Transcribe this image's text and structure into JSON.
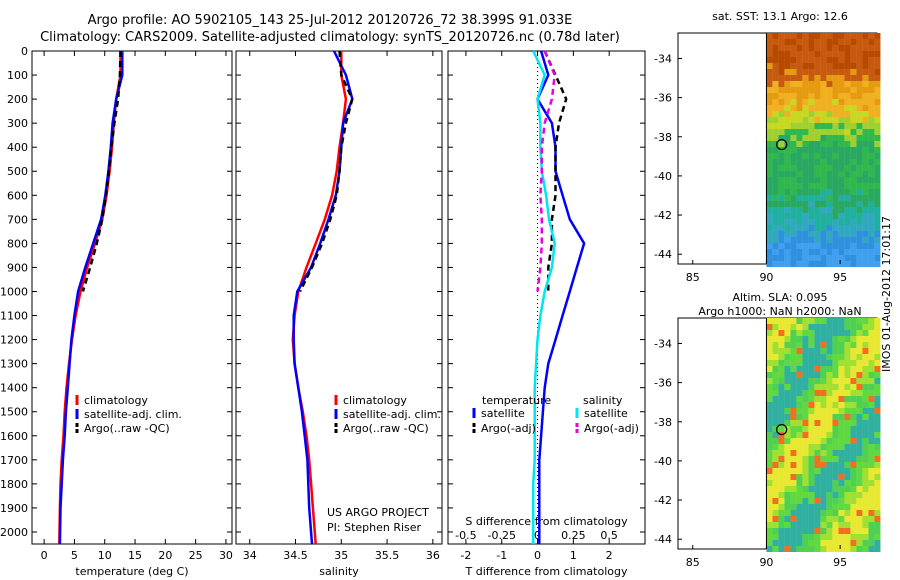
{
  "titles": {
    "line1": "Argo profile: AO 5902105_143 25-Jul-2012 20120726_72 38.399S 91.033E",
    "line2": "Climatology: CARS2009. Satellite-adjusted climatology: synTS_20120726.nc (0.78d later)",
    "map_top": "sat. SST: 13.1 Argo: 12.6",
    "map_bottom_1": "Altim. SLA: 0.095",
    "map_bottom_2": "Argo h1000: NaN h2000: NaN",
    "side_stamp": "IMOS 01-Aug-2012 17:01:17"
  },
  "colors": {
    "climatology": "#ff0000",
    "satellite": "#0000ff",
    "argo": "#000000",
    "salinity_sat": "#00e5ee",
    "salinity_argo": "#e600e6"
  },
  "chart_data": [
    {
      "id": "temperature",
      "type": "line",
      "xlabel": "temperature (deg C)",
      "ylabel": "",
      "xlim": [
        -2,
        31
      ],
      "ylim": [
        2050,
        0
      ],
      "xticks": [
        0,
        5,
        10,
        15,
        20,
        25,
        30
      ],
      "yticks": [
        0,
        100,
        200,
        300,
        400,
        500,
        600,
        700,
        800,
        900,
        1000,
        1100,
        1200,
        1300,
        1400,
        1500,
        1600,
        1700,
        1800,
        1900,
        2000
      ],
      "legend": [
        "climatology",
        "satellite-adj. clim.",
        "Argo(..raw -QC)"
      ],
      "series": [
        {
          "name": "climatology",
          "x": [
            12.6,
            12.6,
            11.9,
            11.5,
            11.2,
            10.8,
            10.3,
            9.6,
            8.4,
            7.1,
            6.0,
            5.2,
            4.6,
            4.1,
            3.7,
            3.4,
            3.2,
            2.9,
            2.7,
            2.6,
            2.5
          ],
          "y": [
            0,
            100,
            200,
            300,
            400,
            500,
            600,
            700,
            800,
            900,
            1000,
            1100,
            1200,
            1300,
            1400,
            1500,
            1600,
            1700,
            1800,
            1900,
            2050
          ]
        },
        {
          "name": "satellite",
          "x": [
            12.9,
            12.9,
            11.9,
            11.3,
            11.0,
            10.6,
            10.1,
            9.4,
            8.1,
            6.8,
            5.6,
            5.0,
            4.5,
            4.2,
            3.9,
            3.6,
            3.4,
            3.1,
            2.9,
            2.7,
            2.6
          ],
          "y": [
            0,
            100,
            200,
            300,
            400,
            500,
            600,
            700,
            800,
            900,
            1000,
            1100,
            1200,
            1300,
            1400,
            1500,
            1600,
            1700,
            1800,
            1900,
            2050
          ]
        },
        {
          "name": "argo",
          "x": [
            12.6,
            12.5,
            12.2,
            11.6,
            11.1,
            10.7,
            10.2,
            9.6,
            8.7,
            7.6,
            6.4
          ],
          "y": [
            0,
            100,
            200,
            300,
            400,
            500,
            600,
            700,
            800,
            900,
            1000
          ]
        }
      ]
    },
    {
      "id": "salinity",
      "type": "line",
      "xlabel": "salinity",
      "ylabel": "",
      "xlim": [
        33.85,
        36.1
      ],
      "ylim": [
        2050,
        0
      ],
      "xticks": [
        34,
        34.5,
        35,
        35.5,
        36
      ],
      "legend": [
        "climatology",
        "satellite-adj. clim.",
        "Argo(..raw -QC)"
      ],
      "series": [
        {
          "name": "climatology",
          "x": [
            35.0,
            35.0,
            35.05,
            35.02,
            34.98,
            34.95,
            34.9,
            34.82,
            34.72,
            34.62,
            34.53,
            34.49,
            34.47,
            34.49,
            34.53,
            34.58,
            34.62,
            34.65,
            34.67,
            34.69,
            34.72
          ],
          "y": [
            0,
            100,
            200,
            300,
            400,
            500,
            600,
            700,
            800,
            900,
            1000,
            1100,
            1200,
            1300,
            1400,
            1500,
            1600,
            1700,
            1800,
            1900,
            2050
          ]
        },
        {
          "name": "satellite",
          "x": [
            34.92,
            35.05,
            35.12,
            35.02,
            35.0,
            34.98,
            34.94,
            34.86,
            34.77,
            34.67,
            34.52,
            34.48,
            34.48,
            34.49,
            34.53,
            34.57,
            34.6,
            34.63,
            34.64,
            34.65,
            34.68
          ],
          "y": [
            0,
            100,
            200,
            300,
            400,
            500,
            600,
            700,
            800,
            900,
            1000,
            1100,
            1200,
            1300,
            1400,
            1500,
            1600,
            1700,
            1800,
            1900,
            2050
          ]
        },
        {
          "name": "argo",
          "x": [
            34.98,
            35.0,
            35.12,
            35.05,
            35.0,
            34.98,
            34.95,
            34.88,
            34.79,
            34.68,
            34.55
          ],
          "y": [
            0,
            100,
            200,
            300,
            400,
            500,
            600,
            700,
            800,
            900,
            1000
          ]
        }
      ],
      "annotations": [
        "US ARGO PROJECT",
        "PI: Stephen Riser"
      ]
    },
    {
      "id": "difference",
      "type": "line",
      "xlabel": "T difference from climatology",
      "xlabel_top": "S difference from climatology",
      "xlim": [
        -2.5,
        3.0
      ],
      "ylim": [
        2050,
        0
      ],
      "xticks": [
        -2,
        -1,
        0,
        1,
        2
      ],
      "xticks_salinity": [
        -0.5,
        -0.25,
        0,
        0.25,
        0.5
      ],
      "xticks_salinity_labels": [
        "-0.5",
        "-0.25",
        "0",
        "0.25",
        "0.5"
      ],
      "legend_headers": [
        "temperature",
        "salinity"
      ],
      "legend": [
        "satellite",
        "Argo(-adj)",
        "satellite",
        "Argo(-adj)"
      ],
      "series": [
        {
          "name": "temperature satellite",
          "x": [
            0.1,
            0.3,
            0.0,
            0.4,
            0.5,
            0.5,
            0.7,
            0.9,
            1.3,
            1.1,
            0.9,
            0.7,
            0.5,
            0.3,
            0.2,
            0.15,
            0.1,
            0.05,
            0.05,
            0.05,
            0.05
          ],
          "y": [
            0,
            100,
            200,
            300,
            400,
            500,
            600,
            700,
            800,
            900,
            1000,
            1100,
            1200,
            1300,
            1400,
            1500,
            1600,
            1700,
            1800,
            1900,
            2050
          ]
        },
        {
          "name": "temperature argo",
          "x": [
            0.2,
            0.5,
            0.8,
            0.6,
            0.5,
            0.5,
            0.5,
            0.4,
            0.4,
            0.3,
            0.3
          ],
          "y": [
            0,
            100,
            200,
            300,
            400,
            500,
            600,
            700,
            800,
            900,
            1000
          ]
        },
        {
          "name": "salinity satellite",
          "x": [
            -0.03,
            0.05,
            0.0,
            0.02,
            0.02,
            0.03,
            0.06,
            0.08,
            0.12,
            0.1,
            0.05,
            0.02,
            0.0,
            -0.01,
            -0.02,
            -0.02,
            -0.02,
            -0.02,
            -0.03,
            -0.03,
            -0.03
          ],
          "y": [
            0,
            100,
            200,
            300,
            400,
            500,
            600,
            700,
            800,
            900,
            1000,
            1100,
            1200,
            1300,
            1400,
            1500,
            1600,
            1700,
            1800,
            1900,
            2050
          ]
        },
        {
          "name": "salinity argo",
          "x": [
            0.05,
            0.12,
            0.1,
            0.05,
            0.03,
            0.03,
            0.02,
            0.03,
            0.03,
            0.02,
            0.0
          ],
          "y": [
            0,
            100,
            200,
            300,
            400,
            500,
            600,
            700,
            800,
            900,
            1000
          ]
        }
      ]
    },
    {
      "id": "map-sst",
      "type": "heatmap",
      "xlim": [
        84,
        97.5
      ],
      "ylim": [
        -44.5,
        -32.7
      ],
      "xticks": [
        85,
        90,
        95
      ],
      "yticks": [
        -34,
        -36,
        -38,
        -40,
        -42,
        -44
      ],
      "data_x_start": 90,
      "marker": {
        "lon": 91.033,
        "lat": -38.399
      }
    },
    {
      "id": "map-sla",
      "type": "heatmap",
      "xlim": [
        84,
        97.5
      ],
      "ylim": [
        -44.5,
        -32.7
      ],
      "xticks": [
        85,
        90,
        95
      ],
      "yticks": [
        -34,
        -36,
        -38,
        -40,
        -42,
        -44
      ],
      "data_x_start": 90,
      "marker": {
        "lon": 91.033,
        "lat": -38.399
      }
    }
  ]
}
